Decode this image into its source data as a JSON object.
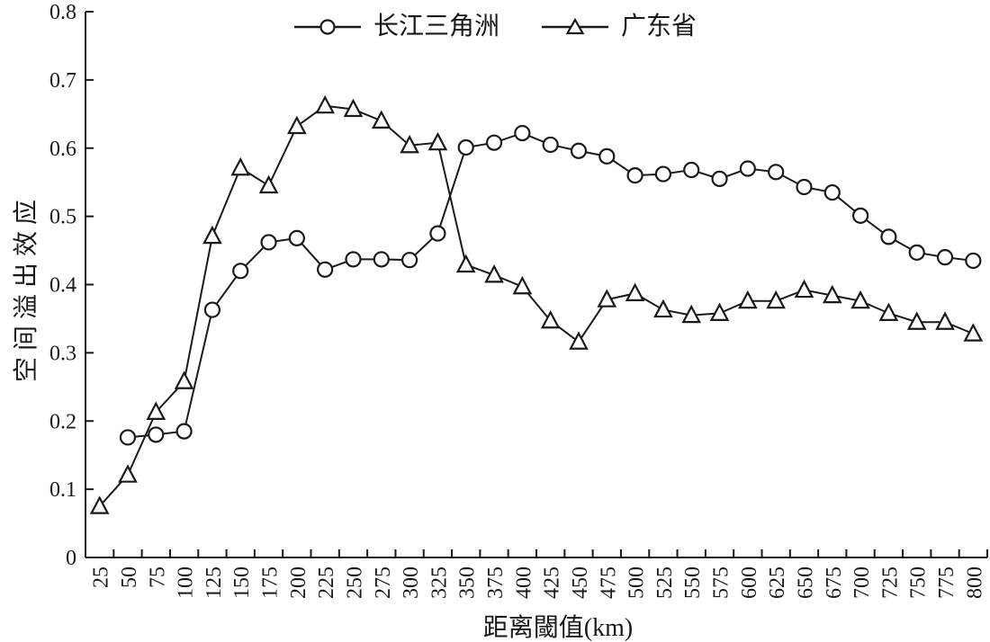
{
  "figure": {
    "ink": "#1a1a1a",
    "background": "#ffffff"
  },
  "chart_data": {
    "type": "line",
    "title": "",
    "xlabel": "距离閾值(km)",
    "ylabel": "空间溢出效应",
    "legend_position": "top-center",
    "grid": false,
    "ylim": [
      0,
      0.8
    ],
    "ytick_step": 0.1,
    "ytick_labels": [
      "0",
      "0.1",
      "0.2",
      "0.3",
      "0.4",
      "0.5",
      "0.6",
      "0.7",
      "0.8"
    ],
    "x": [
      25,
      50,
      75,
      100,
      125,
      150,
      175,
      200,
      225,
      250,
      275,
      300,
      325,
      350,
      375,
      400,
      425,
      450,
      475,
      500,
      525,
      550,
      575,
      600,
      625,
      650,
      675,
      700,
      725,
      750,
      775,
      800
    ],
    "series": [
      {
        "name": "长江三角洲",
        "marker": "circle",
        "values": [
          null,
          0.176,
          0.18,
          0.185,
          0.363,
          0.42,
          0.462,
          0.468,
          0.422,
          0.437,
          0.437,
          0.436,
          0.475,
          0.601,
          0.608,
          0.622,
          0.605,
          0.596,
          0.588,
          0.56,
          0.562,
          0.568,
          0.555,
          0.57,
          0.565,
          0.543,
          0.535,
          0.501,
          0.47,
          0.447,
          0.44,
          0.435
        ]
      },
      {
        "name": "广东省",
        "marker": "triangle",
        "values": [
          0.075,
          0.121,
          0.213,
          0.258,
          0.471,
          0.571,
          0.545,
          0.632,
          0.662,
          0.657,
          0.64,
          0.604,
          0.608,
          0.429,
          0.414,
          0.397,
          0.347,
          0.316,
          0.378,
          0.387,
          0.363,
          0.355,
          0.358,
          0.376,
          0.376,
          0.392,
          0.384,
          0.376,
          0.358,
          0.345,
          0.345,
          0.328
        ]
      }
    ]
  }
}
